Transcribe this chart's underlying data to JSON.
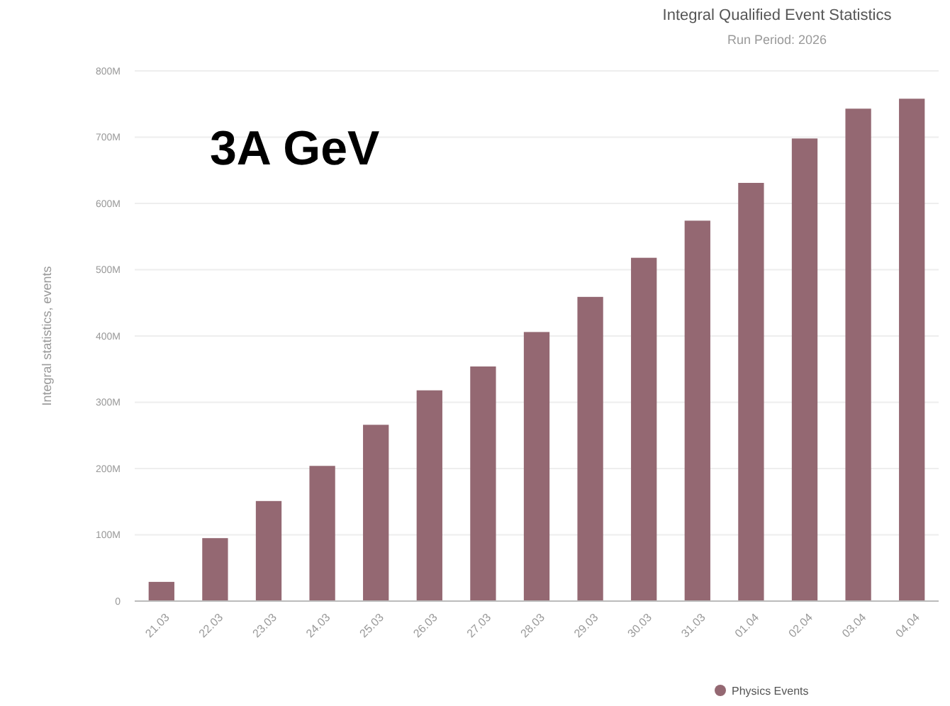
{
  "chart_data": {
    "type": "bar",
    "title": "Integral Qualified Event Statistics",
    "subtitle": "Run Period: 2026",
    "ylabel": "Integral statistics, events",
    "annotations": [
      "3A GeV"
    ],
    "categories": [
      "21.03",
      "22.03",
      "23.03",
      "24.03",
      "25.03",
      "26.03",
      "27.03",
      "28.03",
      "29.03",
      "30.03",
      "31.03",
      "01.04",
      "02.04",
      "03.04",
      "04.04"
    ],
    "series": [
      {
        "name": "Physics Events",
        "color": "#946872",
        "values": [
          29,
          95,
          151,
          204,
          266,
          318,
          354,
          406,
          459,
          518,
          574,
          631,
          698,
          743,
          758
        ]
      }
    ],
    "ylim": [
      0,
      800
    ],
    "yticks": [
      {
        "value": 0,
        "label": "0"
      },
      {
        "value": 100,
        "label": "100M"
      },
      {
        "value": 200,
        "label": "200M"
      },
      {
        "value": 300,
        "label": "300M"
      },
      {
        "value": 400,
        "label": "400M"
      },
      {
        "value": 500,
        "label": "500M"
      },
      {
        "value": 600,
        "label": "600M"
      },
      {
        "value": 700,
        "label": "700M"
      },
      {
        "value": 800,
        "label": "800M"
      }
    ],
    "grid": "y",
    "legend": "bottom right"
  }
}
